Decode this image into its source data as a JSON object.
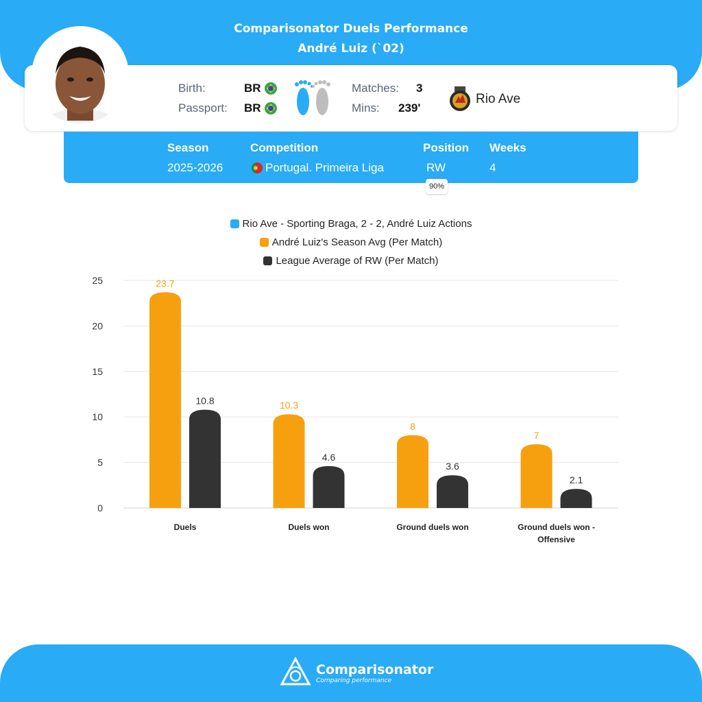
{
  "header": {
    "title_line1": "Comparisonator Duels Performance",
    "title_line2": "André Luiz (`02)"
  },
  "player": {
    "birth_label": "Birth:",
    "birth_value": "BR",
    "passport_label": "Passport:",
    "passport_value": "BR",
    "matches_label": "Matches:",
    "matches_value": "3",
    "mins_label": "Mins:",
    "mins_value": "239'",
    "club": "Rio Ave"
  },
  "info": {
    "season_label": "Season",
    "season_value": "2025-2026",
    "competition_label": "Competition",
    "competition_value": "Portugal. Primeira Liga",
    "position_label": "Position",
    "position_value": "RW",
    "position_pct": "90%",
    "weeks_label": "Weeks",
    "weeks_value": "4"
  },
  "colors": {
    "brand_blue": "#29abf6",
    "season_avg": "#f7a00f",
    "league_avg": "#333333",
    "match": "#29abf6"
  },
  "icons": [
    "feet-icon",
    "club-crest-icon",
    "portugal-flag-icon",
    "brazil-flag-icon",
    "comparisonator-logo-icon"
  ],
  "chart_data": {
    "type": "bar",
    "categories": [
      "Duels",
      "Duels won",
      "Ground duels won",
      "Ground duels won - Offensive"
    ],
    "series": [
      {
        "name": "Rio Ave - Sporting Braga, 2 - 2, André Luiz Actions",
        "values": [
          null,
          null,
          null,
          null
        ],
        "labels": [
          "",
          "",
          "",
          ""
        ]
      },
      {
        "name": "André Luiz's Season Avg (Per Match)",
        "values": [
          23.7,
          10.3,
          8,
          7
        ],
        "labels": [
          "23.7",
          "10.3",
          "8",
          "7"
        ]
      },
      {
        "name": "League Average of RW (Per Match)",
        "values": [
          10.8,
          4.6,
          3.6,
          2.1
        ],
        "labels": [
          "10.8",
          "4.6",
          "3.6",
          "2.1"
        ]
      }
    ],
    "ylim": [
      0,
      25
    ],
    "yticks": [
      "0",
      "5",
      "10",
      "15",
      "20",
      "25"
    ],
    "grid": true,
    "legend": "top-center"
  },
  "footer": {
    "brand": "Comparisonator",
    "tagline": "Comparing performance"
  }
}
